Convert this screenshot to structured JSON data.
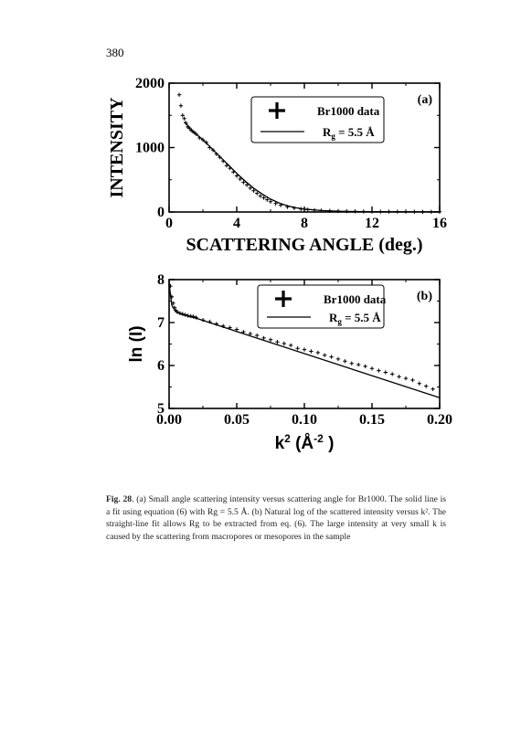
{
  "page_number": "380",
  "chart_data": [
    {
      "type": "scatter",
      "panel_label": "(a)",
      "xlabel": "SCATTERING ANGLE (deg.)",
      "ylabel": "INTENSITY",
      "xlim": [
        0,
        16
      ],
      "ylim": [
        0,
        2000
      ],
      "xticks": [
        "0",
        "4",
        "8",
        "12",
        "16"
      ],
      "yticks": [
        "0",
        "1000",
        "2000"
      ],
      "legend": {
        "placement": "top-right",
        "marker_label": "Br1000 data",
        "line_label": "R",
        "line_label_sub": "g",
        "line_label_tail": " = 5.5 Å"
      },
      "series": [
        {
          "name": "Br1000 data",
          "style": "markers",
          "x": [
            0.6,
            0.7,
            0.8,
            0.9,
            1.0,
            1.1,
            1.2,
            1.3,
            1.4,
            1.5,
            1.6,
            1.8,
            2.0,
            2.2,
            2.4,
            2.6,
            2.8,
            3.0,
            3.2,
            3.4,
            3.6,
            3.8,
            4.0,
            4.2,
            4.4,
            4.6,
            4.8,
            5.0,
            5.2,
            5.4,
            5.6,
            5.8,
            6.0,
            6.3,
            6.6,
            7.0,
            7.4,
            7.8,
            8.2,
            8.6,
            9.0,
            9.5,
            10.0,
            10.5,
            11.0,
            11.5,
            12.0,
            12.5,
            13.0,
            13.5,
            14.0,
            14.5,
            15.0,
            15.5,
            16.0
          ],
          "y": [
            1820,
            1650,
            1500,
            1450,
            1380,
            1320,
            1300,
            1270,
            1250,
            1230,
            1210,
            1150,
            1120,
            1080,
            1000,
            960,
            900,
            850,
            790,
            720,
            680,
            620,
            560,
            510,
            460,
            420,
            370,
            330,
            290,
            250,
            220,
            190,
            160,
            130,
            105,
            80,
            60,
            45,
            35,
            28,
            22,
            18,
            15,
            12,
            10,
            8,
            7,
            6,
            5,
            5,
            4,
            4,
            3,
            3,
            3
          ]
        },
        {
          "name": "Rg = 5.5 Å",
          "style": "line",
          "x": [
            0.9,
            1.5,
            2.0,
            2.5,
            3.0,
            3.5,
            4.0,
            4.5,
            5.0,
            5.5,
            6.0,
            6.5,
            7.0,
            7.5,
            8.0,
            9.0,
            10.0,
            11.0,
            12.0,
            13.0,
            14.0,
            15.0,
            16.0
          ],
          "y": [
            1400,
            1230,
            1120,
            990,
            860,
            730,
            600,
            480,
            370,
            280,
            200,
            140,
            95,
            65,
            45,
            22,
            12,
            7,
            5,
            4,
            3,
            3,
            3
          ]
        }
      ]
    },
    {
      "type": "scatter",
      "panel_label": "(b)",
      "xlabel": "k",
      "xlabel_sup": "2",
      "xlabel_unit": " (Å",
      "xlabel_unit_sup": "-2",
      "xlabel_tail": " )",
      "ylabel": "ln (I)",
      "xlim": [
        0,
        0.2
      ],
      "ylim": [
        5,
        8
      ],
      "xticks": [
        "0.00",
        "0.05",
        "0.10",
        "0.15",
        "0.20"
      ],
      "yticks": [
        "5",
        "6",
        "7",
        "8"
      ],
      "legend": {
        "placement": "top-right",
        "marker_label": "Br1000 data",
        "line_label": "R",
        "line_label_sub": "g",
        "line_label_tail": " = 5.5 Å"
      },
      "series": [
        {
          "name": "Br1000 data",
          "style": "markers",
          "x": [
            0.001,
            0.002,
            0.003,
            0.004,
            0.005,
            0.006,
            0.008,
            0.01,
            0.012,
            0.014,
            0.016,
            0.018,
            0.02,
            0.025,
            0.03,
            0.035,
            0.04,
            0.045,
            0.05,
            0.055,
            0.06,
            0.065,
            0.07,
            0.075,
            0.08,
            0.085,
            0.09,
            0.095,
            0.1,
            0.105,
            0.11,
            0.115,
            0.12,
            0.125,
            0.13,
            0.135,
            0.14,
            0.145,
            0.15,
            0.155,
            0.16,
            0.165,
            0.17,
            0.175,
            0.18,
            0.185,
            0.19,
            0.195
          ],
          "y": [
            7.85,
            7.6,
            7.45,
            7.35,
            7.28,
            7.25,
            7.22,
            7.2,
            7.18,
            7.16,
            7.15,
            7.14,
            7.12,
            7.06,
            7.02,
            6.97,
            6.92,
            6.88,
            6.84,
            6.78,
            6.74,
            6.7,
            6.64,
            6.6,
            6.55,
            6.51,
            6.47,
            6.4,
            6.37,
            6.33,
            6.3,
            6.24,
            6.2,
            6.15,
            6.1,
            6.05,
            6.02,
            5.98,
            5.93,
            5.88,
            5.84,
            5.8,
            5.74,
            5.7,
            5.66,
            5.58,
            5.52,
            5.45
          ]
        },
        {
          "name": "Rg = 5.5 Å",
          "style": "line",
          "x": [
            0.0,
            0.002,
            0.005,
            0.01,
            0.02,
            0.2
          ],
          "y": [
            7.9,
            7.4,
            7.25,
            7.18,
            7.1,
            5.25
          ]
        }
      ]
    }
  ],
  "caption": {
    "label": "Fig. 28",
    "text": ". (a) Small angle scattering intensity versus scattering angle for Br1000. The solid line is a fit using equation (6) with Rg = 5.5 Å. (b) Natural log of the scattered intensity versus k². The straight-line fit allows Rg to be extracted from eq. (6). The large intensity at very small k is caused by the scattering from macropores or mesopores in the sample"
  }
}
